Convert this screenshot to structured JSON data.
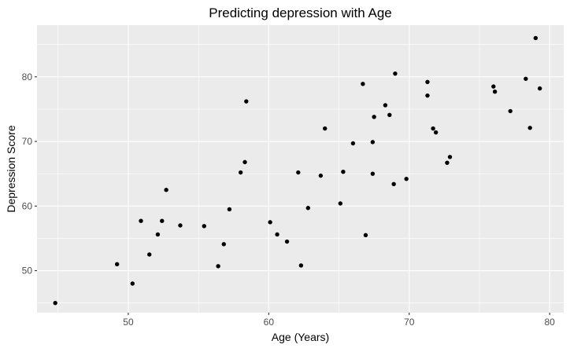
{
  "chart_data": {
    "type": "scatter",
    "title": "Predicting depression with Age",
    "xlabel": "Age (Years)",
    "ylabel": "Depression Score",
    "xlim": [
      43.5,
      81
    ],
    "ylim": [
      43.5,
      88
    ],
    "xticks": [
      50,
      60,
      70,
      80
    ],
    "yticks": [
      50,
      60,
      70,
      80
    ],
    "grid": true,
    "panel_background": "#EBEBEB",
    "point_color": "#000000",
    "x": [
      44.8,
      49.2,
      50.3,
      50.9,
      51.5,
      52.1,
      52.4,
      52.7,
      53.7,
      55.4,
      56.4,
      56.8,
      57.2,
      58.0,
      58.3,
      58.4,
      60.1,
      60.6,
      61.3,
      62.1,
      62.3,
      62.8,
      63.7,
      64.0,
      65.1,
      65.3,
      66.0,
      66.7,
      66.9,
      67.4,
      67.4,
      67.5,
      68.3,
      68.6,
      68.9,
      69.0,
      69.8,
      71.3,
      71.3,
      71.7,
      71.9,
      72.7,
      72.9,
      76.0,
      76.1,
      77.2,
      78.3,
      78.6,
      79.0,
      79.3
    ],
    "y": [
      45.0,
      51.0,
      48.0,
      57.7,
      52.5,
      55.6,
      57.7,
      62.5,
      57.0,
      56.9,
      50.7,
      54.1,
      59.5,
      65.2,
      66.8,
      76.2,
      57.5,
      55.6,
      54.5,
      65.2,
      50.8,
      59.7,
      64.7,
      72.0,
      60.4,
      65.3,
      69.7,
      78.9,
      55.5,
      65.0,
      69.9,
      73.8,
      75.6,
      74.1,
      63.4,
      80.5,
      64.2,
      79.2,
      77.1,
      72.0,
      71.4,
      66.7,
      67.6,
      78.5,
      77.7,
      74.7,
      79.7,
      72.1,
      86.0,
      78.2
    ]
  }
}
